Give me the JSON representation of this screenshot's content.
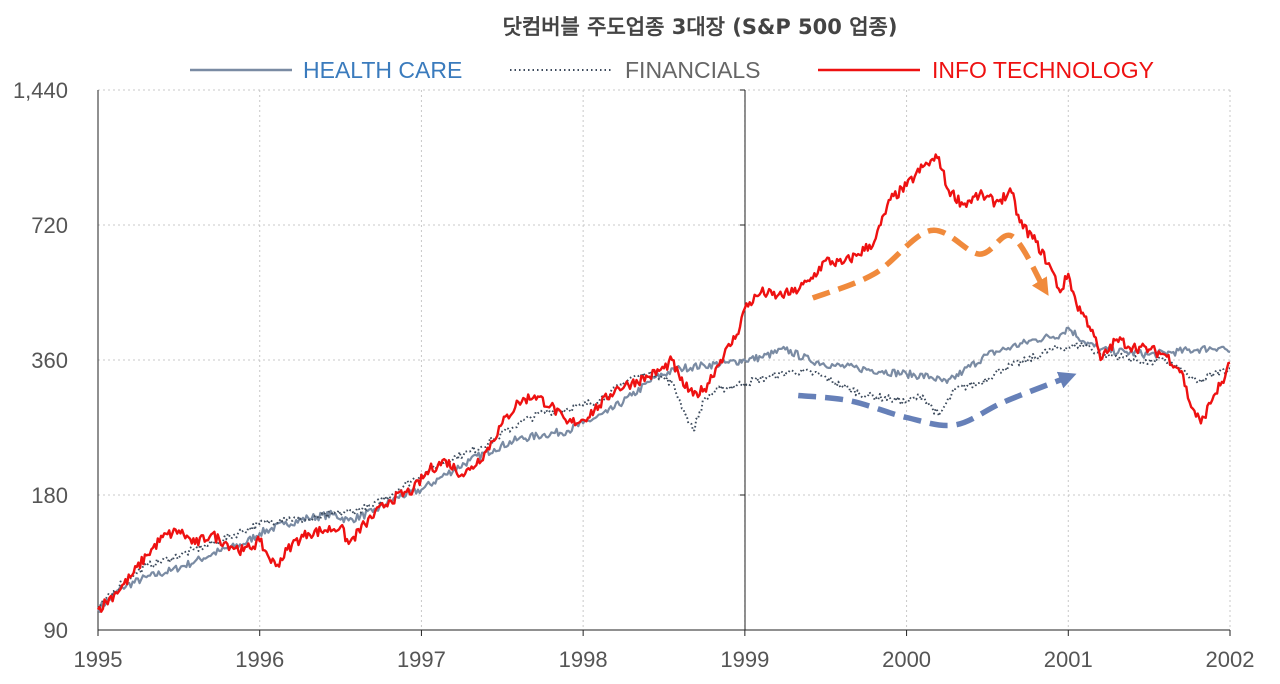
{
  "chart_data": {
    "type": "line",
    "title": "닷컴버블 주도업종 3대장 (S&P 500 업종)",
    "y_scale": "log",
    "ylim": [
      90,
      1440
    ],
    "yticks": [
      90,
      180,
      360,
      720,
      1440
    ],
    "ytick_labels": [
      "90",
      "180",
      "360",
      "720",
      "1,440"
    ],
    "xlim": [
      1995,
      2002
    ],
    "xticks": [
      1995,
      1996,
      1997,
      1998,
      1999,
      2000,
      2001,
      2002
    ],
    "xtick_labels": [
      "1995",
      "1996",
      "1997",
      "1998",
      "1999",
      "2000",
      "2001",
      "2002"
    ],
    "grid": true,
    "legend_position": "top-center",
    "series": [
      {
        "name": "HEALTH CARE",
        "color": "#7a8ba3",
        "label_color": "#3a7bbd",
        "style": "solid",
        "x": [
          1995.0,
          1995.15,
          1995.3,
          1995.45,
          1995.6,
          1995.75,
          1995.9,
          1996.0,
          1996.15,
          1996.3,
          1996.45,
          1996.55,
          1996.7,
          1996.85,
          1997.0,
          1997.15,
          1997.3,
          1997.45,
          1997.6,
          1997.75,
          1997.9,
          1998.0,
          1998.15,
          1998.3,
          1998.45,
          1998.6,
          1998.75,
          1998.9,
          1999.0,
          1999.1,
          1999.25,
          1999.4,
          1999.55,
          1999.7,
          1999.85,
          2000.0,
          2000.15,
          2000.25,
          2000.35,
          2000.5,
          2000.65,
          2000.8,
          2000.95,
          2001.0,
          2001.1,
          2001.2,
          2001.35,
          2001.5,
          2001.65,
          2001.8,
          2001.95,
          2002.0
        ],
        "y": [
          100,
          112,
          118,
          122,
          128,
          135,
          140,
          148,
          155,
          160,
          163,
          158,
          165,
          178,
          185,
          200,
          215,
          228,
          240,
          245,
          250,
          260,
          275,
          300,
          330,
          345,
          350,
          355,
          360,
          365,
          380,
          360,
          350,
          345,
          340,
          335,
          330,
          320,
          340,
          370,
          385,
          400,
          410,
          425,
          395,
          380,
          375,
          370,
          375,
          380,
          385,
          375
        ]
      },
      {
        "name": "FINANCIALS",
        "color": "#3c4a5c",
        "label_color": "#666666",
        "style": "dotted",
        "x": [
          1995.0,
          1995.15,
          1995.3,
          1995.45,
          1995.6,
          1995.75,
          1995.9,
          1996.0,
          1996.15,
          1996.3,
          1996.45,
          1996.55,
          1996.7,
          1996.85,
          1997.0,
          1997.15,
          1997.3,
          1997.45,
          1997.6,
          1997.75,
          1997.9,
          1998.0,
          1998.15,
          1998.3,
          1998.45,
          1998.55,
          1998.62,
          1998.68,
          1998.75,
          1998.85,
          1999.0,
          1999.15,
          1999.3,
          1999.45,
          1999.6,
          1999.75,
          1999.9,
          2000.0,
          2000.1,
          2000.2,
          2000.3,
          2000.45,
          2000.6,
          2000.75,
          2000.9,
          2001.0,
          2001.1,
          2001.2,
          2001.35,
          2001.5,
          2001.6,
          2001.7,
          2001.8,
          2001.9,
          2002.0
        ],
        "y": [
          100,
          115,
          125,
          130,
          136,
          142,
          150,
          155,
          160,
          158,
          163,
          165,
          170,
          185,
          200,
          215,
          225,
          240,
          260,
          275,
          280,
          285,
          300,
          330,
          335,
          320,
          280,
          250,
          295,
          310,
          320,
          330,
          340,
          335,
          315,
          300,
          295,
          290,
          300,
          270,
          310,
          320,
          345,
          360,
          380,
          385,
          390,
          370,
          365,
          355,
          360,
          340,
          320,
          335,
          345
        ]
      },
      {
        "name": "INFO TECHNOLOGY",
        "color": "#ee1111",
        "label_color": "#ee1111",
        "style": "solid",
        "x": [
          1995.0,
          1995.1,
          1995.2,
          1995.3,
          1995.4,
          1995.5,
          1995.6,
          1995.7,
          1995.8,
          1995.9,
          1996.0,
          1996.05,
          1996.1,
          1996.2,
          1996.3,
          1996.4,
          1996.5,
          1996.55,
          1996.65,
          1996.8,
          1996.95,
          1997.05,
          1997.15,
          1997.25,
          1997.3,
          1997.4,
          1997.5,
          1997.6,
          1997.7,
          1997.8,
          1997.9,
          1998.0,
          1998.1,
          1998.2,
          1998.3,
          1998.4,
          1998.5,
          1998.55,
          1998.6,
          1998.68,
          1998.75,
          1998.85,
          1998.95,
          1999.0,
          1999.1,
          1999.2,
          1999.3,
          1999.4,
          1999.5,
          1999.6,
          1999.7,
          1999.8,
          1999.9,
          2000.0,
          2000.1,
          2000.2,
          2000.25,
          2000.35,
          2000.45,
          2000.55,
          2000.65,
          2000.7,
          2000.8,
          2000.9,
          2000.95,
          2001.0,
          2001.05,
          2001.1,
          2001.15,
          2001.2,
          2001.3,
          2001.4,
          2001.5,
          2001.6,
          2001.7,
          2001.75,
          2001.82,
          2001.9,
          2001.97,
          2002.0
        ],
        "y": [
          100,
          108,
          118,
          132,
          145,
          150,
          140,
          147,
          140,
          135,
          142,
          132,
          125,
          140,
          148,
          150,
          153,
          140,
          155,
          175,
          185,
          205,
          215,
          200,
          205,
          225,
          260,
          290,
          300,
          285,
          260,
          265,
          285,
          310,
          320,
          330,
          345,
          360,
          325,
          300,
          310,
          360,
          410,
          470,
          510,
          500,
          510,
          540,
          600,
          590,
          620,
          660,
          820,
          880,
          970,
          1020,
          870,
          800,
          840,
          810,
          850,
          730,
          660,
          570,
          510,
          560,
          480,
          450,
          420,
          360,
          400,
          385,
          380,
          370,
          340,
          290,
          260,
          300,
          330,
          355
        ]
      }
    ],
    "annotations": [
      {
        "type": "dashed-arrow",
        "color": "#f08a3c",
        "x": [
          1999.42,
          1999.8,
          2000.15,
          2000.45,
          2000.65,
          2000.85
        ],
        "y": [
          495,
          560,
          700,
          620,
          680,
          520
        ]
      },
      {
        "type": "dashed-arrow",
        "color": "#6680b8",
        "x": [
          1999.33,
          1999.65,
          2000.0,
          2000.3,
          2000.6,
          2001.0
        ],
        "y": [
          300,
          292,
          268,
          258,
          290,
          330
        ]
      }
    ]
  }
}
